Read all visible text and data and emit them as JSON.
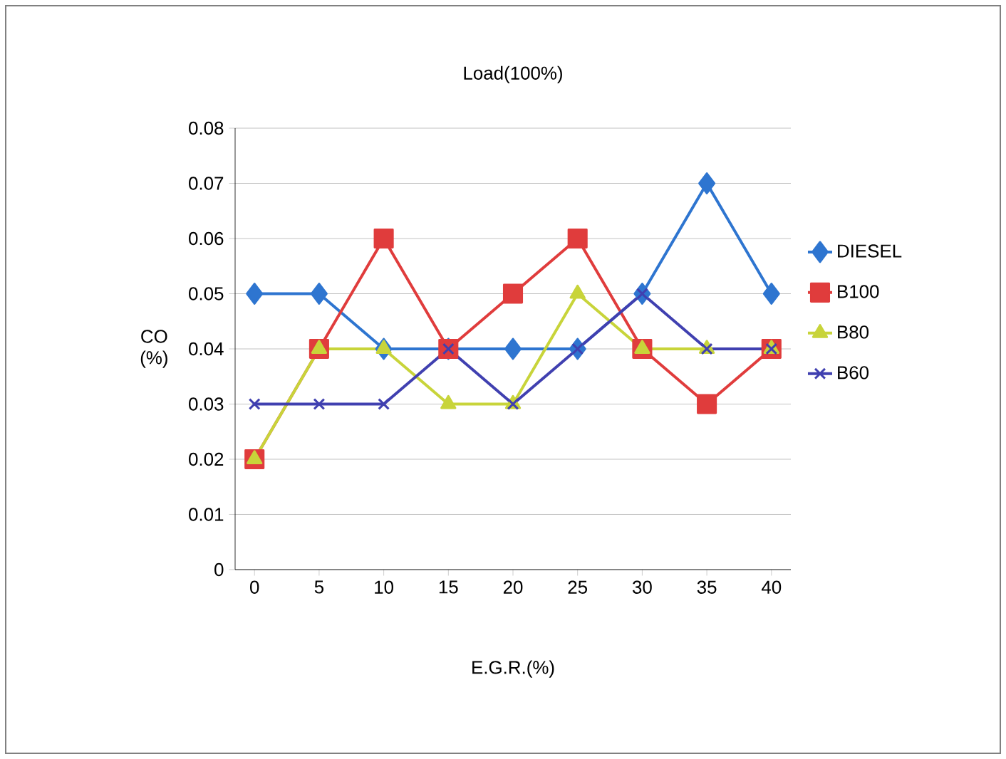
{
  "chart_data": {
    "type": "line",
    "title": "Load(100%)",
    "xlabel": "E.G.R.(%)",
    "ylabel": "CO (%)",
    "categories": [
      "0",
      "5",
      "10",
      "15",
      "20",
      "25",
      "30",
      "35",
      "40"
    ],
    "ylim": [
      0,
      0.08
    ],
    "yticks": [
      {
        "value": 0,
        "label": "0"
      },
      {
        "value": 0.01,
        "label": "0.01"
      },
      {
        "value": 0.02,
        "label": "0.02"
      },
      {
        "value": 0.03,
        "label": "0.03"
      },
      {
        "value": 0.04,
        "label": "0.04"
      },
      {
        "value": 0.05,
        "label": "0.05"
      },
      {
        "value": 0.06,
        "label": "0.06"
      },
      {
        "value": 0.07,
        "label": "0.07"
      },
      {
        "value": 0.08,
        "label": "0.08"
      }
    ],
    "grid": "y",
    "legend": "right",
    "series": [
      {
        "name": "DIESEL",
        "color": "#2e75d0",
        "marker": "diamond",
        "values": [
          0.05,
          0.05,
          0.04,
          0.04,
          0.04,
          0.04,
          0.05,
          0.07,
          0.05
        ]
      },
      {
        "name": "B100",
        "color": "#e03c3c",
        "marker": "square",
        "values": [
          0.02,
          0.04,
          0.06,
          0.04,
          0.05,
          0.06,
          0.04,
          0.03,
          0.04
        ]
      },
      {
        "name": "B80",
        "color": "#c8d43a",
        "marker": "triangle",
        "values": [
          0.02,
          0.04,
          0.04,
          0.03,
          0.03,
          0.05,
          0.04,
          0.04,
          0.04
        ]
      },
      {
        "name": "B60",
        "color": "#4040b0",
        "marker": "cross",
        "values": [
          0.03,
          0.03,
          0.03,
          0.04,
          0.03,
          0.04,
          0.05,
          0.04,
          0.04
        ]
      }
    ]
  }
}
